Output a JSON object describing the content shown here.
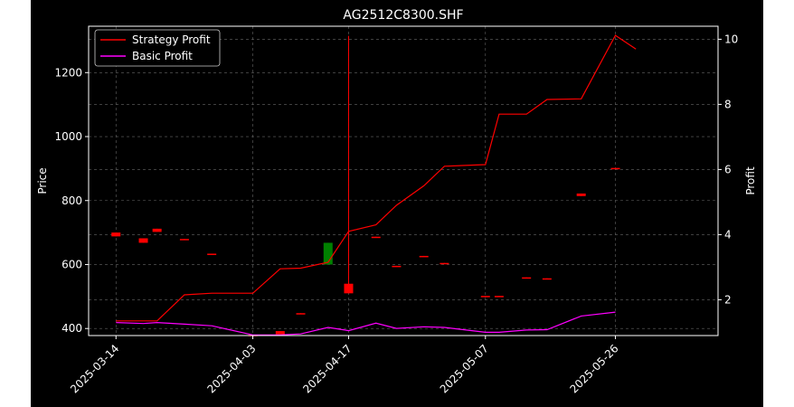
{
  "chart_data": {
    "type": "candlestick+line",
    "title": "AG2512C8300.SHF",
    "ylabel": "Price",
    "y2label": "Profit",
    "ylim": [
      378,
      1345
    ],
    "y2lim": [
      0.9,
      10.4
    ],
    "yticks": [
      400,
      600,
      800,
      1000,
      1200
    ],
    "y2ticks": [
      2,
      4,
      6,
      8,
      10
    ],
    "grid": true,
    "legend_position": "top-left",
    "colors": {
      "background": "#000000",
      "up": "#008000",
      "down": "#ff0000",
      "strategy": "#ff0000",
      "basic": "#ff00ff",
      "grid": "#666666",
      "text": "#ffffff"
    },
    "x_dates": [
      "2025-03-14",
      "2025-03-18",
      "2025-03-20",
      "2025-03-24",
      "2025-03-28",
      "2025-04-03",
      "2025-04-07",
      "2025-04-10",
      "2025-04-14",
      "2025-04-17",
      "2025-04-21",
      "2025-04-24",
      "2025-04-28",
      "2025-05-01",
      "2025-05-07",
      "2025-05-09",
      "2025-05-13",
      "2025-05-16",
      "2025-05-21",
      "2025-05-26",
      "2025-05-29",
      "2025-06-03",
      "2025-06-06"
    ],
    "xtick_labels": [
      "2025-03-14",
      "2025-04-03",
      "2025-04-17",
      "2025-05-07",
      "2025-05-26"
    ],
    "x_extent": [
      "2025-03-10",
      "2025-06-10"
    ],
    "candles": [
      {
        "date": "2025-03-14",
        "open": 700,
        "high": 700,
        "low": 688,
        "close": 688
      },
      {
        "date": "2025-03-18",
        "open": 682,
        "high": 682,
        "low": 668,
        "close": 668
      },
      {
        "date": "2025-03-20",
        "open": 712,
        "high": 712,
        "low": 702,
        "close": 702
      },
      {
        "date": "2025-03-24",
        "open": 680,
        "high": 680,
        "low": 678,
        "close": 678
      },
      {
        "date": "2025-03-28",
        "open": 634,
        "high": 634,
        "low": 632,
        "close": 632
      },
      {
        "date": "2025-04-03",
        "open": 380,
        "high": 380,
        "low": 378,
        "close": 378
      },
      {
        "date": "2025-04-07",
        "open": 392,
        "high": 392,
        "low": 382,
        "close": 382
      },
      {
        "date": "2025-04-10",
        "open": 448,
        "high": 448,
        "low": 446,
        "close": 446
      },
      {
        "date": "2025-04-14",
        "open": 600,
        "high": 668,
        "low": 600,
        "close": 668
      },
      {
        "date": "2025-04-17",
        "open": 540,
        "high": 1315,
        "low": 510,
        "close": 510
      },
      {
        "date": "2025-04-21",
        "open": 687,
        "high": 687,
        "low": 685,
        "close": 685
      },
      {
        "date": "2025-04-24",
        "open": 596,
        "high": 596,
        "low": 594,
        "close": 594
      },
      {
        "date": "2025-04-28",
        "open": 627,
        "high": 627,
        "low": 625,
        "close": 625
      },
      {
        "date": "2025-05-01",
        "open": 605,
        "high": 605,
        "low": 603,
        "close": 603
      },
      {
        "date": "2025-05-07",
        "open": 502,
        "high": 502,
        "low": 500,
        "close": 500
      },
      {
        "date": "2025-05-09",
        "open": 502,
        "high": 502,
        "low": 500,
        "close": 500
      },
      {
        "date": "2025-05-13",
        "open": 560,
        "high": 560,
        "low": 558,
        "close": 558
      },
      {
        "date": "2025-05-16",
        "open": 557,
        "high": 557,
        "low": 555,
        "close": 555
      },
      {
        "date": "2025-05-21",
        "open": 822,
        "high": 822,
        "low": 814,
        "close": 814
      },
      {
        "date": "2025-05-26",
        "open": 902,
        "high": 902,
        "low": 900,
        "close": 900
      }
    ],
    "series": [
      {
        "name": "Strategy Profit",
        "axis": "right",
        "color": "#ff0000",
        "points": [
          [
            "2025-03-14",
            1.35
          ],
          [
            "2025-03-20",
            1.35
          ],
          [
            "2025-03-24",
            2.15
          ],
          [
            "2025-03-28",
            2.2
          ],
          [
            "2025-04-03",
            2.2
          ],
          [
            "2025-04-07",
            2.95
          ],
          [
            "2025-04-10",
            2.97
          ],
          [
            "2025-04-14",
            3.15
          ],
          [
            "2025-04-17",
            4.1
          ],
          [
            "2025-04-21",
            4.3
          ],
          [
            "2025-04-24",
            4.9
          ],
          [
            "2025-04-28",
            5.5
          ],
          [
            "2025-05-01",
            6.1
          ],
          [
            "2025-05-07",
            6.15
          ],
          [
            "2025-05-09",
            7.7
          ],
          [
            "2025-05-13",
            7.7
          ],
          [
            "2025-05-16",
            8.15
          ],
          [
            "2025-05-21",
            8.17
          ],
          [
            "2025-05-26",
            10.12
          ],
          [
            "2025-05-29",
            9.7
          ]
        ]
      },
      {
        "name": "Basic Profit",
        "axis": "right",
        "color": "#ff00ff",
        "points": [
          [
            "2025-03-14",
            1.3
          ],
          [
            "2025-03-18",
            1.27
          ],
          [
            "2025-03-20",
            1.3
          ],
          [
            "2025-03-24",
            1.25
          ],
          [
            "2025-03-28",
            1.2
          ],
          [
            "2025-04-03",
            0.92
          ],
          [
            "2025-04-07",
            0.92
          ],
          [
            "2025-04-10",
            0.95
          ],
          [
            "2025-04-14",
            1.15
          ],
          [
            "2025-04-17",
            1.05
          ],
          [
            "2025-04-21",
            1.28
          ],
          [
            "2025-04-24",
            1.12
          ],
          [
            "2025-04-28",
            1.17
          ],
          [
            "2025-05-01",
            1.15
          ],
          [
            "2025-05-07",
            1.0
          ],
          [
            "2025-05-09",
            1.0
          ],
          [
            "2025-05-13",
            1.07
          ],
          [
            "2025-05-16",
            1.08
          ],
          [
            "2025-05-21",
            1.5
          ],
          [
            "2025-05-26",
            1.62
          ]
        ]
      }
    ]
  }
}
